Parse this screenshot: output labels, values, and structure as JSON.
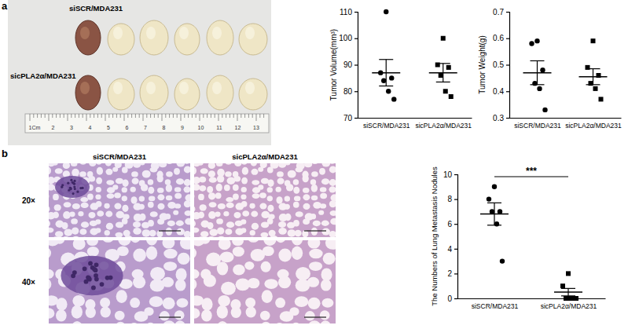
{
  "chart_data": [
    {
      "type": "scatter",
      "ylabel": "Tumor Volume(mm³)",
      "categories": [
        "siSCR/MDA231",
        "sicPLA2α/MDA231"
      ],
      "values": [
        [
          110,
          87,
          85,
          84,
          80,
          77
        ],
        [
          100,
          90,
          89,
          86,
          80,
          78
        ]
      ],
      "means": [
        87,
        87
      ],
      "errors": [
        5,
        3.5
      ],
      "ylim": [
        70,
        110
      ],
      "yticks": [
        70,
        80,
        90,
        100,
        110
      ],
      "color": "#000000"
    },
    {
      "type": "scatter",
      "ylabel": "Tumor Weight(g)",
      "categories": [
        "siSCR/MDA231",
        "sicPLA2α/MDA231"
      ],
      "values": [
        [
          0.59,
          0.58,
          0.48,
          0.43,
          0.41,
          0.33
        ],
        [
          0.59,
          0.49,
          0.46,
          0.43,
          0.41,
          0.37
        ]
      ],
      "means": [
        0.47,
        0.455
      ],
      "errors": [
        0.045,
        0.03
      ],
      "ylim": [
        0.3,
        0.7
      ],
      "yticks": [
        0.3,
        0.4,
        0.5,
        0.6,
        0.7
      ],
      "color": "#000000"
    },
    {
      "type": "scatter",
      "ylabel": "The Numbers of Lung Metastasis Nodules",
      "categories": [
        "siSCR/MDA231",
        "sicPLA2α/MDA231"
      ],
      "values": [
        [
          9,
          8,
          7,
          7,
          6,
          3
        ],
        [
          2,
          1,
          0,
          0,
          0,
          0
        ]
      ],
      "means": [
        6.8,
        0.5
      ],
      "errors": [
        0.9,
        0.3
      ],
      "annotation": "***",
      "ylim": [
        0,
        10
      ],
      "yticks": [
        0,
        2,
        4,
        6,
        8,
        10
      ],
      "color": "#000000"
    }
  ],
  "figure": {
    "panel_labels": [
      "a",
      "b"
    ],
    "photo_rows": [
      "siSCR/MDA231",
      "sicPLA2α/MDA231"
    ],
    "ruler": [
      "1Cm",
      "2",
      "3",
      "4",
      "5",
      "6",
      "7",
      "8",
      "9",
      "10",
      "11",
      "12",
      "13"
    ],
    "histology_columns": [
      "siSCR/MDA231",
      "sicPLA2α/MDA231"
    ],
    "magnifications": [
      "20×",
      "40×"
    ]
  }
}
